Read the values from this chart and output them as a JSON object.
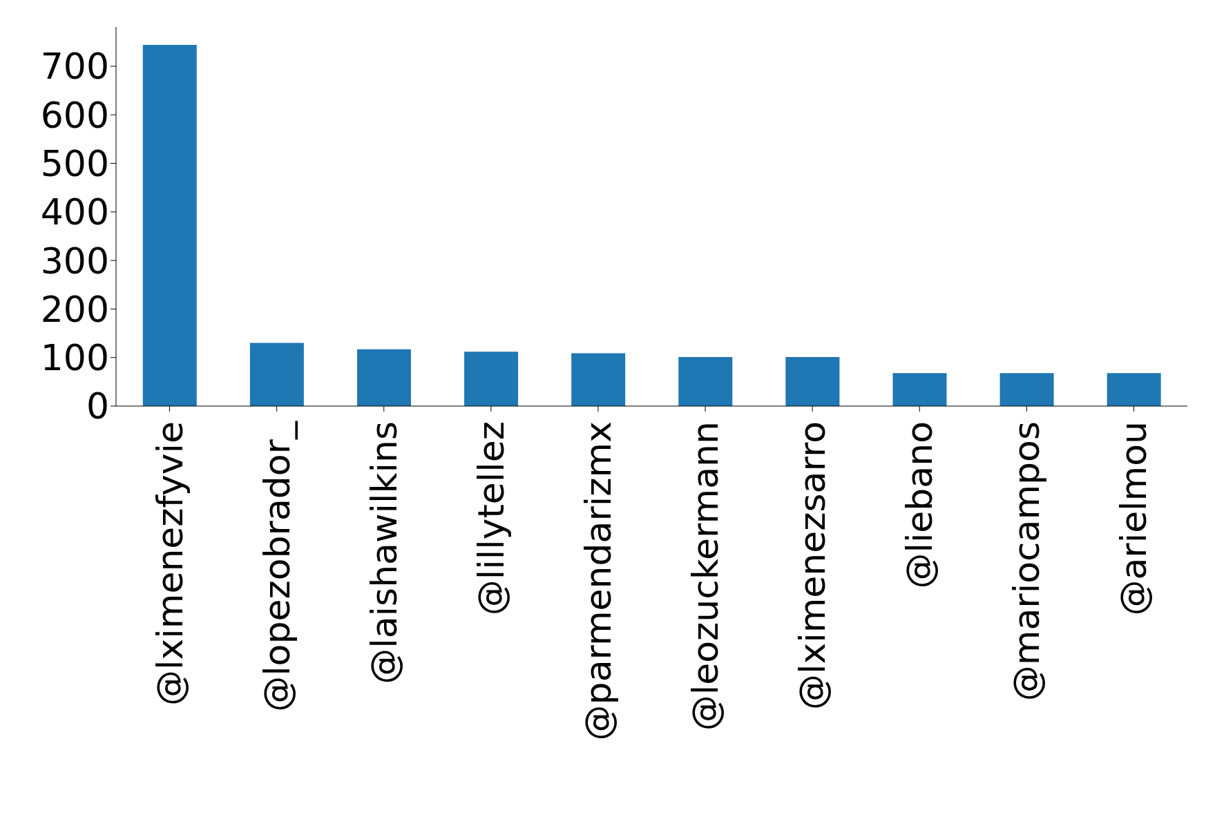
{
  "chart_data": {
    "type": "bar",
    "categories": [
      "@lximenezfyvie",
      "@lopezobrador_",
      "@laishawilkins",
      "@lillytellez",
      "@parmendarizmx",
      "@leozuckermann",
      "@lximenezsarro",
      "@liebano",
      "@mariocampos",
      "@arielmou"
    ],
    "values": [
      744,
      130,
      117,
      112,
      109,
      101,
      101,
      68,
      68,
      68
    ],
    "color": "#1f77b4",
    "ylim": [
      0,
      781
    ],
    "yticks": [
      0,
      100,
      200,
      300,
      400,
      500,
      600,
      700
    ],
    "grid": false,
    "legend": false
  }
}
